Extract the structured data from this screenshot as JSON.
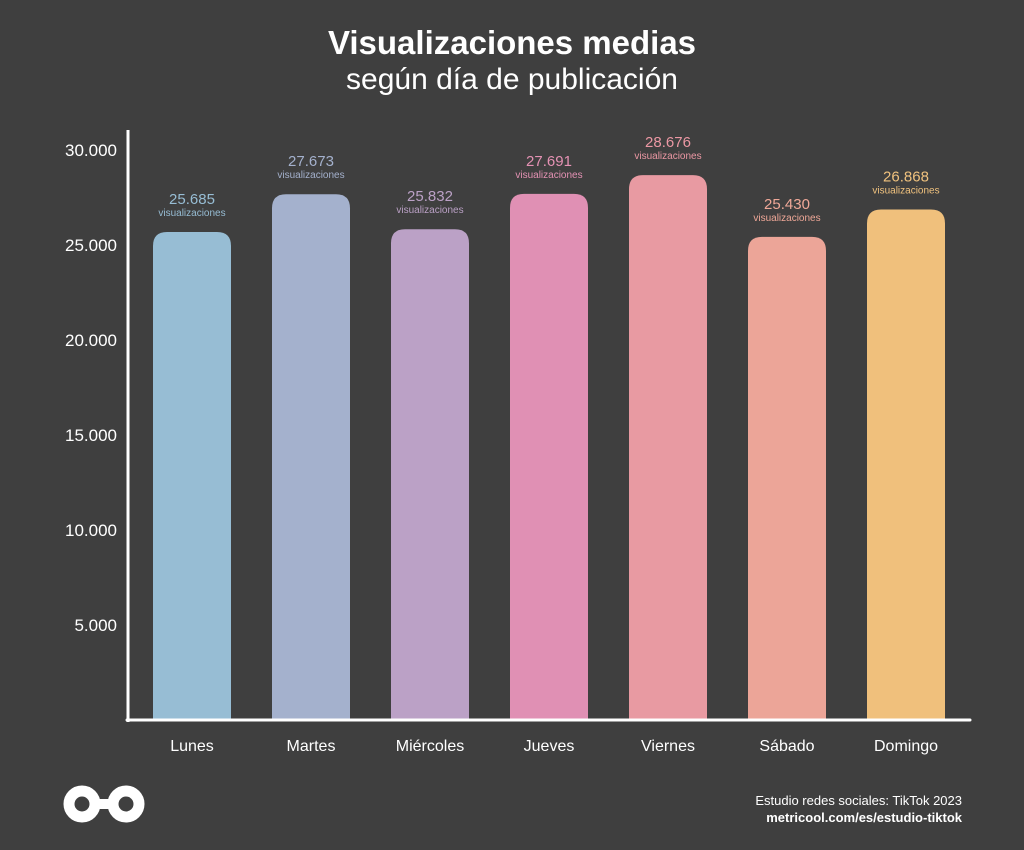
{
  "header": {
    "title": "Visualizaciones medias",
    "subtitle": "según día de publicación"
  },
  "footer": {
    "source": "Estudio redes sociales: TikTok 2023",
    "url": "metricool.com/es/estudio-tiktok"
  },
  "logo": {
    "icon": "infinity-logo-icon"
  },
  "colors": {
    "background": "#3f3f3f",
    "axis": "#ffffff",
    "text": "#ffffff"
  },
  "chart_data": {
    "type": "bar",
    "title": "Visualizaciones medias",
    "subtitle": "según día de publicación",
    "xlabel": "",
    "ylabel": "",
    "categories": [
      "Lunes",
      "Martes",
      "Miércoles",
      "Jueves",
      "Viernes",
      "Sábado",
      "Domingo"
    ],
    "values": [
      25685,
      27673,
      25832,
      27691,
      28676,
      25430,
      26868
    ],
    "value_labels": [
      "25.685",
      "27.673",
      "25.832",
      "27.691",
      "28.676",
      "25.430",
      "26.868"
    ],
    "value_unit_label": "visualizaciones",
    "bar_colors": [
      "#97bdd4",
      "#a4b1cd",
      "#bba1c6",
      "#e090b4",
      "#e89aa2",
      "#eca598",
      "#f0c07c"
    ],
    "label_colors": [
      "#97bdd4",
      "#a4b1cd",
      "#bba1c6",
      "#e592b4",
      "#ec98a4",
      "#f0a898",
      "#f0c27e"
    ],
    "yticks": [
      5000,
      10000,
      15000,
      20000,
      25000,
      30000
    ],
    "ytick_labels": [
      "5.000",
      "10.000",
      "15.000",
      "20.000",
      "25.000",
      "30.000"
    ],
    "ylim": [
      0,
      30000
    ],
    "grid": false,
    "legend": "none"
  }
}
